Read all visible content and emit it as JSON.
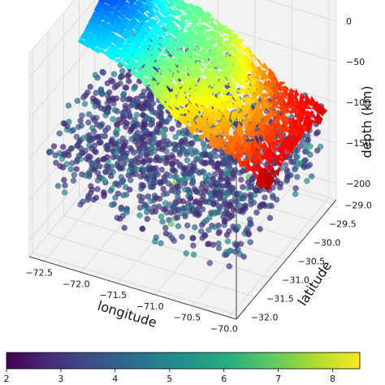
{
  "chart_data": {
    "type": "scatter",
    "subtype": "3d-scatter-with-surface",
    "title": "",
    "xlabel": "longitude",
    "ylabel": "latitude",
    "zlabel": "depth (km)",
    "x_ticks": [
      "−72.5",
      "−72.0",
      "−71.5",
      "−71.0",
      "−70.5",
      "−70.0"
    ],
    "y_ticks": [
      "−29.0",
      "−29.5",
      "−30.0",
      "−30.5",
      "−31.0",
      "−31.5",
      "−32.0"
    ],
    "z_ticks": [
      "0",
      "−50",
      "−100",
      "−150",
      "−200"
    ],
    "xlim": [
      -72.7,
      -69.9
    ],
    "ylim": [
      -32.1,
      -28.9
    ],
    "zlim": [
      -220,
      30
    ],
    "grid": true,
    "surface": {
      "name": "",
      "colormap": "jet",
      "depth_range_km": [
        -120,
        20
      ],
      "description_values": {
        "west_edge_depth_km": 10,
        "east_edge_depth_km": -110
      }
    },
    "points": {
      "colormap": "viridis",
      "color_variable_range": [
        2,
        8.5
      ],
      "typical_value": 2.6,
      "depth_range_km": [
        -200,
        -60
      ],
      "lon_range": [
        -72.5,
        -70.0
      ],
      "lat_range": [
        -32.0,
        -29.0
      ]
    },
    "colorbar": {
      "colormap": "viridis",
      "ticks": [
        "2",
        "3",
        "4",
        "5",
        "6",
        "7",
        "8"
      ],
      "range": [
        2,
        8.5
      ]
    }
  },
  "colors": {
    "viridis": [
      "#440154",
      "#472d7b",
      "#3b528b",
      "#2c728e",
      "#21918c",
      "#28ae80",
      "#5ec962",
      "#addc30",
      "#fde725"
    ],
    "jet": [
      "#00007f",
      "#0000ff",
      "#007fff",
      "#00ffff",
      "#7fff7f",
      "#ffff00",
      "#ff7f00",
      "#ff0000",
      "#7f0000"
    ],
    "pane": "#f2f2f2",
    "grid": "#d6d6d6"
  }
}
